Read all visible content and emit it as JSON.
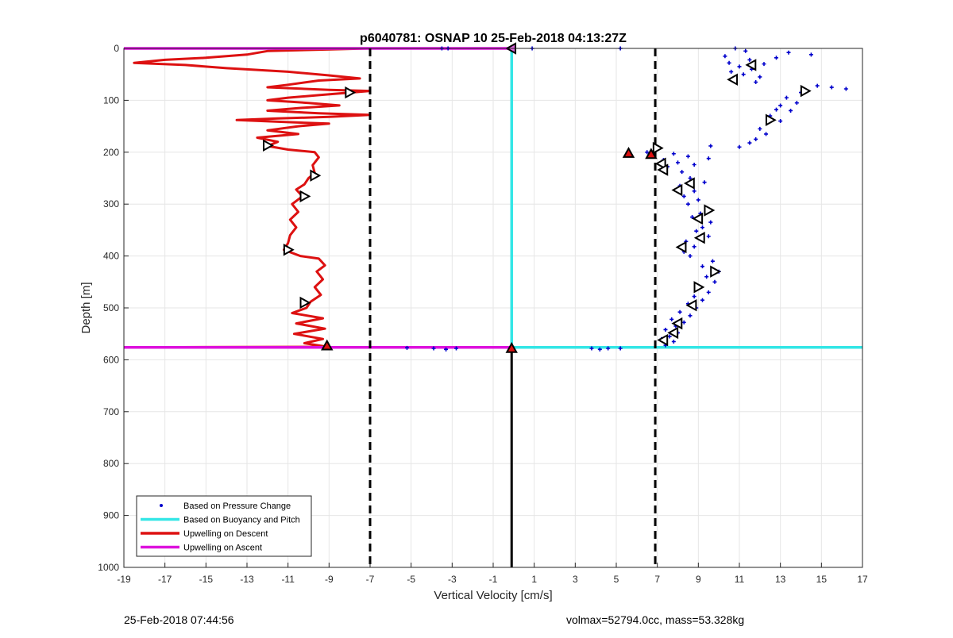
{
  "chart_data": {
    "type": "line",
    "title": "p6040781: OSNAP 10 25-Feb-2018 04:13:27Z",
    "xlabel": "Vertical Velocity [cm/s]",
    "ylabel": "Depth [m]",
    "xlim": [
      -19,
      17
    ],
    "ylim": [
      0,
      1000
    ],
    "y_reversed": true,
    "grid": true,
    "xticks": [
      "-19",
      "-17",
      "-15",
      "-13",
      "-11",
      "-9",
      "-7",
      "-5",
      "-3",
      "-1",
      "1",
      "3",
      "5",
      "7",
      "9",
      "11",
      "13",
      "15",
      "17"
    ],
    "yticks": [
      "0",
      "100",
      "200",
      "300",
      "400",
      "500",
      "600",
      "700",
      "800",
      "900",
      "1000"
    ],
    "legend_position": "bottom-left",
    "legend": [
      {
        "label": "Based on Pressure Change",
        "color": "#0000cc",
        "style": "dot"
      },
      {
        "label": "Based on Buoyancy and Pitch",
        "color": "#33e6e6",
        "style": "line"
      },
      {
        "label": "Upwelling on Descent",
        "color": "#dd1111",
        "style": "line"
      },
      {
        "label": "Upwelling on Ascent",
        "color": "#dd11dd",
        "style": "line"
      }
    ],
    "series": [
      {
        "name": "Upwelling on Descent",
        "color": "#dd1111",
        "points": [
          [
            -19,
            0
          ],
          [
            -7,
            0
          ],
          [
            -12,
            5
          ],
          [
            -13,
            12
          ],
          [
            -15,
            18
          ],
          [
            -17,
            22
          ],
          [
            -18.5,
            28
          ],
          [
            -16,
            32
          ],
          [
            -14,
            38
          ],
          [
            -11,
            45
          ],
          [
            -9,
            52
          ],
          [
            -7.5,
            58
          ],
          [
            -9.5,
            62
          ],
          [
            -11,
            70
          ],
          [
            -12,
            75
          ],
          [
            -9,
            80
          ],
          [
            -7,
            82
          ],
          [
            -9.5,
            90
          ],
          [
            -11,
            95
          ],
          [
            -12,
            100
          ],
          [
            -10,
            105
          ],
          [
            -8.5,
            110
          ],
          [
            -10.5,
            115
          ],
          [
            -12,
            120
          ],
          [
            -9.5,
            125
          ],
          [
            -7,
            128
          ],
          [
            -9,
            132
          ],
          [
            -11.5,
            135
          ],
          [
            -13.5,
            138
          ],
          [
            -11,
            142
          ],
          [
            -9,
            145
          ],
          [
            -10.5,
            150
          ],
          [
            -12,
            158
          ],
          [
            -10.5,
            165
          ],
          [
            -12.5,
            172
          ],
          [
            -11.5,
            180
          ],
          [
            -12,
            188
          ],
          [
            -11,
            195
          ],
          [
            -9.7,
            200
          ],
          [
            -9.5,
            210
          ],
          [
            -9.8,
            225
          ],
          [
            -9.7,
            240
          ],
          [
            -10,
            250
          ],
          [
            -10.2,
            262
          ],
          [
            -10.6,
            272
          ],
          [
            -10.3,
            285
          ],
          [
            -10.8,
            300
          ],
          [
            -10.5,
            315
          ],
          [
            -10.9,
            330
          ],
          [
            -10.6,
            345
          ],
          [
            -10.9,
            360
          ],
          [
            -11,
            375
          ],
          [
            -11.2,
            388
          ],
          [
            -10.4,
            400
          ],
          [
            -9.5,
            405
          ],
          [
            -9.2,
            418
          ],
          [
            -9.6,
            430
          ],
          [
            -9.3,
            445
          ],
          [
            -9.7,
            460
          ],
          [
            -9.4,
            475
          ],
          [
            -9.9,
            488
          ],
          [
            -10.1,
            500
          ],
          [
            -10.8,
            510
          ],
          [
            -9.3,
            520
          ],
          [
            -10.6,
            530
          ],
          [
            -9.2,
            540
          ],
          [
            -10.7,
            550
          ],
          [
            -9.3,
            560
          ],
          [
            -10.2,
            568
          ],
          [
            -9.1,
            575
          ],
          [
            -19,
            576
          ]
        ]
      },
      {
        "name": "Upwelling on Ascent",
        "color": "#dd11dd",
        "points": [
          [
            -19,
            0
          ],
          [
            -0.1,
            0
          ],
          [
            -19,
            576
          ],
          [
            -0.1,
            576
          ]
        ]
      },
      {
        "name": "Based on Buoyancy and Pitch",
        "color": "#33e6e6",
        "points": [
          [
            -0.1,
            0
          ],
          [
            -0.1,
            576
          ],
          [
            17,
            576
          ]
        ]
      },
      {
        "name": "Based on Pressure Change",
        "color": "#0000cc",
        "points": [
          [
            10.8,
            0
          ],
          [
            11.3,
            5
          ],
          [
            13.4,
            8
          ],
          [
            14.5,
            12
          ],
          [
            10.3,
            15
          ],
          [
            12.8,
            18
          ],
          [
            11.5,
            22
          ],
          [
            10.5,
            28
          ],
          [
            12.2,
            30
          ],
          [
            11.0,
            35
          ],
          [
            11.6,
            40
          ],
          [
            10.6,
            45
          ],
          [
            11.2,
            50
          ],
          [
            12.0,
            55
          ],
          [
            10.8,
            60
          ],
          [
            11.8,
            65
          ],
          [
            14.8,
            72
          ],
          [
            15.5,
            75
          ],
          [
            16.2,
            78
          ],
          [
            14.0,
            85
          ],
          [
            13.3,
            95
          ],
          [
            13.8,
            105
          ],
          [
            13.0,
            110
          ],
          [
            12.8,
            118
          ],
          [
            13.5,
            120
          ],
          [
            12.5,
            130
          ],
          [
            13.0,
            140
          ],
          [
            12.0,
            155
          ],
          [
            12.3,
            165
          ],
          [
            11.8,
            175
          ],
          [
            11.5,
            182
          ],
          [
            11.0,
            190
          ],
          [
            9.6,
            188
          ],
          [
            6.5,
            200
          ],
          [
            7.8,
            203
          ],
          [
            5.7,
            205
          ],
          [
            8.5,
            208
          ],
          [
            9.5,
            212
          ],
          [
            7.3,
            215
          ],
          [
            8.0,
            220
          ],
          [
            8.8,
            224
          ],
          [
            7.5,
            228
          ],
          [
            8.2,
            238
          ],
          [
            8.6,
            250
          ],
          [
            9.3,
            258
          ],
          [
            8.1,
            265
          ],
          [
            8.8,
            275
          ],
          [
            8.3,
            285
          ],
          [
            9.0,
            292
          ],
          [
            8.5,
            300
          ],
          [
            9.4,
            308
          ],
          [
            9.1,
            318
          ],
          [
            8.7,
            325
          ],
          [
            9.6,
            335
          ],
          [
            9.2,
            345
          ],
          [
            8.9,
            352
          ],
          [
            9.5,
            362
          ],
          [
            8.4,
            372
          ],
          [
            8.8,
            382
          ],
          [
            8.3,
            392
          ],
          [
            8.6,
            400
          ],
          [
            9.7,
            410
          ],
          [
            9.2,
            420
          ],
          [
            10.0,
            430
          ],
          [
            9.4,
            440
          ],
          [
            9.8,
            450
          ],
          [
            9.1,
            460
          ],
          [
            9.5,
            470
          ],
          [
            8.8,
            478
          ],
          [
            9.2,
            485
          ],
          [
            8.5,
            492
          ],
          [
            8.9,
            500
          ],
          [
            8.1,
            508
          ],
          [
            8.6,
            515
          ],
          [
            7.7,
            522
          ],
          [
            8.3,
            528
          ],
          [
            7.9,
            535
          ],
          [
            7.4,
            542
          ],
          [
            8.0,
            548
          ],
          [
            7.6,
            555
          ],
          [
            7.2,
            560
          ],
          [
            7.8,
            565
          ],
          [
            7.4,
            572
          ],
          [
            3.8,
            578
          ],
          [
            4.2,
            580
          ],
          [
            4.6,
            578
          ],
          [
            5.2,
            578
          ],
          [
            -5.2,
            577
          ],
          [
            -3.9,
            578
          ],
          [
            -3.3,
            580
          ],
          [
            -2.8,
            578
          ],
          [
            -3.5,
            0
          ],
          [
            -3.2,
            0
          ],
          [
            0.9,
            0
          ],
          [
            5.2,
            0
          ]
        ]
      }
    ],
    "markers": [
      {
        "x": -0.1,
        "y": 0,
        "shape": "left",
        "fill": "#dd66dd"
      },
      {
        "x": -8.0,
        "y": 85,
        "shape": "right",
        "fill": "#ffffff"
      },
      {
        "x": -12.0,
        "y": 187,
        "shape": "right",
        "fill": "#ffffff"
      },
      {
        "x": -9.7,
        "y": 245,
        "shape": "right",
        "fill": "#ffffff"
      },
      {
        "x": -10.2,
        "y": 285,
        "shape": "right",
        "fill": "#ffffff"
      },
      {
        "x": -11.0,
        "y": 388,
        "shape": "right",
        "fill": "#ffffff"
      },
      {
        "x": -10.2,
        "y": 490,
        "shape": "right",
        "fill": "#ffffff"
      },
      {
        "x": -9.1,
        "y": 573,
        "shape": "up",
        "fill": "#dd1111"
      },
      {
        "x": -0.1,
        "y": 578,
        "shape": "up",
        "fill": "#dd1111"
      },
      {
        "x": 11.6,
        "y": 32,
        "shape": "left",
        "fill": "#ffffff"
      },
      {
        "x": 10.7,
        "y": 60,
        "shape": "left",
        "fill": "#ffffff"
      },
      {
        "x": 14.2,
        "y": 82,
        "shape": "right",
        "fill": "#ffffff"
      },
      {
        "x": 12.5,
        "y": 138,
        "shape": "right",
        "fill": "#ffffff"
      },
      {
        "x": 5.6,
        "y": 202,
        "shape": "up",
        "fill": "#dd1111"
      },
      {
        "x": 6.7,
        "y": 204,
        "shape": "up",
        "fill": "#dd1111"
      },
      {
        "x": 7.0,
        "y": 192,
        "shape": "right",
        "fill": "#ffffff"
      },
      {
        "x": 7.2,
        "y": 222,
        "shape": "left",
        "fill": "#ffffff"
      },
      {
        "x": 7.3,
        "y": 234,
        "shape": "left",
        "fill": "#ffffff"
      },
      {
        "x": 8.6,
        "y": 260,
        "shape": "left",
        "fill": "#ffffff"
      },
      {
        "x": 8.0,
        "y": 273,
        "shape": "left",
        "fill": "#ffffff"
      },
      {
        "x": 9.5,
        "y": 312,
        "shape": "right",
        "fill": "#ffffff"
      },
      {
        "x": 9.0,
        "y": 328,
        "shape": "left",
        "fill": "#ffffff"
      },
      {
        "x": 9.1,
        "y": 365,
        "shape": "left",
        "fill": "#ffffff"
      },
      {
        "x": 8.2,
        "y": 383,
        "shape": "left",
        "fill": "#ffffff"
      },
      {
        "x": 9.8,
        "y": 430,
        "shape": "right",
        "fill": "#ffffff"
      },
      {
        "x": 9.0,
        "y": 460,
        "shape": "right",
        "fill": "#ffffff"
      },
      {
        "x": 8.7,
        "y": 495,
        "shape": "left",
        "fill": "#ffffff"
      },
      {
        "x": 8.0,
        "y": 530,
        "shape": "left",
        "fill": "#ffffff"
      },
      {
        "x": 7.8,
        "y": 548,
        "shape": "left",
        "fill": "#ffffff"
      },
      {
        "x": 7.3,
        "y": 562,
        "shape": "left",
        "fill": "#ffffff"
      }
    ],
    "reference_lines": [
      {
        "x": -7,
        "style": "dashed",
        "color": "#000000"
      },
      {
        "x": 6.9,
        "style": "dashed",
        "color": "#000000"
      },
      {
        "x": -0.1,
        "y_from": 578,
        "y_to": 1000,
        "style": "solid",
        "color": "#000000"
      }
    ]
  },
  "footer": {
    "left": "25-Feb-2018 07:44:56",
    "right": "volmax=52794.0cc, mass=53.328kg"
  }
}
